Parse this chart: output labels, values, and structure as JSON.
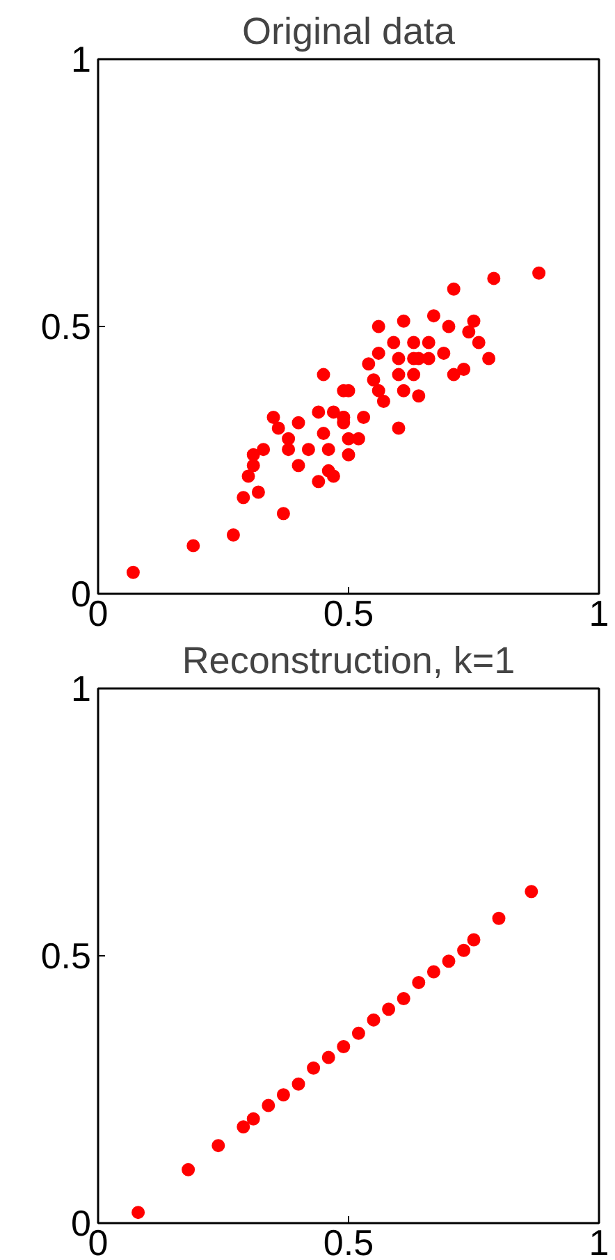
{
  "chart_data": [
    {
      "type": "scatter",
      "title": "Original data",
      "xlim": [
        0,
        1
      ],
      "ylim": [
        0,
        1
      ],
      "xticks": [
        0,
        0.5,
        1
      ],
      "yticks": [
        0,
        0.5,
        1
      ],
      "grid": false,
      "marker": "circle",
      "series": [
        {
          "color": "#ff0000",
          "x": [
            0.07,
            0.19,
            0.27,
            0.29,
            0.32,
            0.37,
            0.3,
            0.31,
            0.31,
            0.33,
            0.35,
            0.36,
            0.38,
            0.4,
            0.38,
            0.4,
            0.42,
            0.44,
            0.47,
            0.46,
            0.45,
            0.44,
            0.45,
            0.46,
            0.47,
            0.49,
            0.5,
            0.49,
            0.5,
            0.5,
            0.49,
            0.52,
            0.49,
            0.53,
            0.88,
            0.79,
            0.71,
            0.75,
            0.76,
            0.78,
            0.73,
            0.71,
            0.74,
            0.7,
            0.67,
            0.69,
            0.66,
            0.66,
            0.63,
            0.61,
            0.56,
            0.59,
            0.56,
            0.54,
            0.6,
            0.63,
            0.64,
            0.6,
            0.63,
            0.55,
            0.56,
            0.57,
            0.61,
            0.64,
            0.6
          ],
          "values": [
            0.04,
            0.09,
            0.11,
            0.18,
            0.19,
            0.15,
            0.22,
            0.24,
            0.26,
            0.27,
            0.33,
            0.31,
            0.29,
            0.32,
            0.27,
            0.24,
            0.27,
            0.21,
            0.22,
            0.23,
            0.41,
            0.34,
            0.3,
            0.27,
            0.34,
            0.38,
            0.26,
            0.32,
            0.29,
            0.38,
            0.33,
            0.29,
            0.33,
            0.33,
            0.6,
            0.59,
            0.57,
            0.51,
            0.47,
            0.44,
            0.42,
            0.41,
            0.49,
            0.5,
            0.52,
            0.45,
            0.47,
            0.44,
            0.47,
            0.51,
            0.5,
            0.47,
            0.45,
            0.43,
            0.44,
            0.44,
            0.44,
            0.41,
            0.41,
            0.4,
            0.38,
            0.36,
            0.38,
            0.37,
            0.31
          ]
        }
      ]
    },
    {
      "type": "scatter",
      "title": "Reconstruction, k=1",
      "xlim": [
        0,
        1
      ],
      "ylim": [
        0,
        1
      ],
      "xticks": [
        0,
        0.5,
        1
      ],
      "yticks": [
        0,
        0.5,
        1
      ],
      "grid": false,
      "marker": "circle",
      "series": [
        {
          "color": "#ff0000",
          "x": [
            0.08,
            0.18,
            0.24,
            0.29,
            0.31,
            0.34,
            0.37,
            0.4,
            0.43,
            0.46,
            0.49,
            0.52,
            0.55,
            0.58,
            0.61,
            0.64,
            0.67,
            0.7,
            0.73,
            0.75,
            0.8,
            0.865
          ],
          "values": [
            0.02,
            0.1,
            0.145,
            0.18,
            0.195,
            0.22,
            0.24,
            0.26,
            0.29,
            0.31,
            0.33,
            0.355,
            0.38,
            0.4,
            0.42,
            0.45,
            0.47,
            0.49,
            0.51,
            0.53,
            0.57,
            0.62
          ]
        }
      ]
    }
  ]
}
